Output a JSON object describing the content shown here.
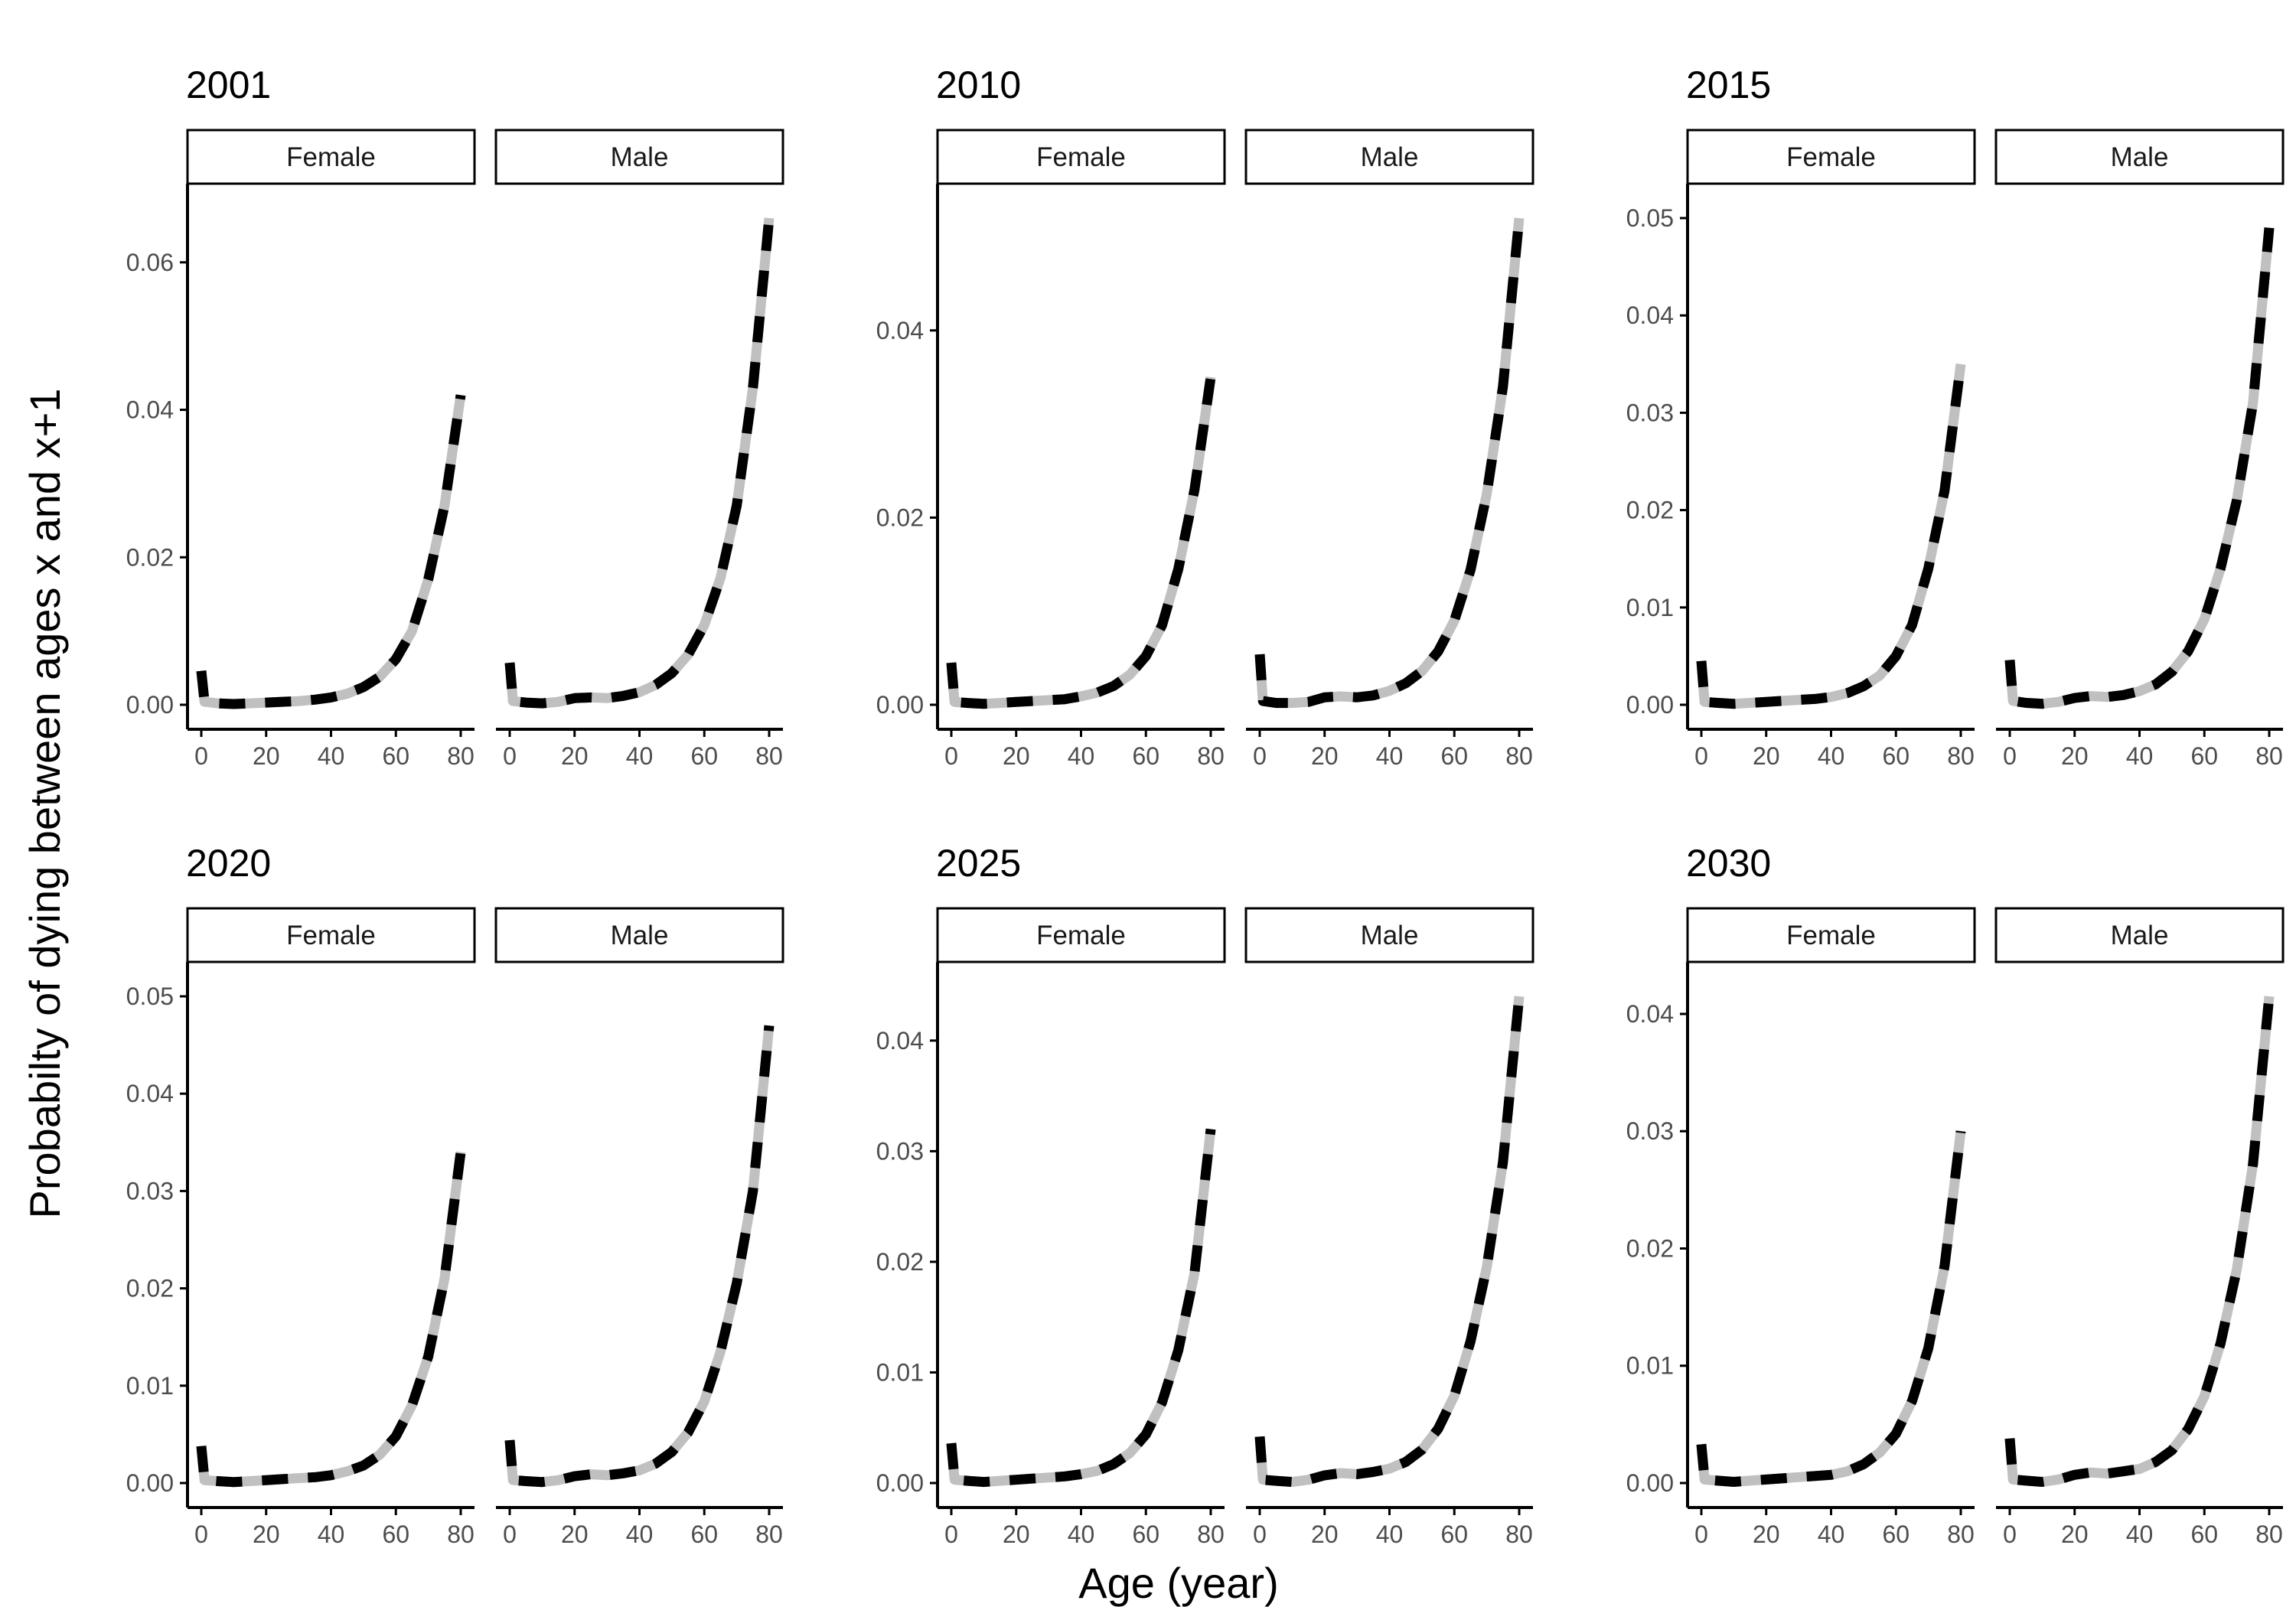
{
  "figure": {
    "ylabel": "Probabilty of dying between ages x and x+1",
    "xlabel": "Age (year)"
  },
  "colors": {
    "fitted_line": "#c0c0c0",
    "observed_line": "#000000",
    "axis": "#000000",
    "tick_text": "#4d4d4d",
    "strip_border": "#000000"
  },
  "chart_data": [
    {
      "type": "line",
      "title": "2001",
      "facets": [
        "Female",
        "Male"
      ],
      "x": [
        0,
        1,
        5,
        10,
        15,
        20,
        25,
        30,
        35,
        40,
        45,
        50,
        55,
        60,
        65,
        70,
        75,
        80
      ],
      "series": [
        {
          "facet": "Female",
          "values": [
            0.0046,
            0.0004,
            0.0002,
            0.0001,
            0.0002,
            0.0003,
            0.0004,
            0.0005,
            0.0007,
            0.001,
            0.0015,
            0.0024,
            0.0038,
            0.0062,
            0.01,
            0.017,
            0.027,
            0.042
          ]
        },
        {
          "facet": "Male",
          "values": [
            0.0057,
            0.0005,
            0.0003,
            0.0002,
            0.0004,
            0.0009,
            0.001,
            0.0009,
            0.0012,
            0.0017,
            0.0027,
            0.0043,
            0.0068,
            0.0108,
            0.0172,
            0.027,
            0.043,
            0.066
          ]
        }
      ],
      "xlim": [
        0,
        80
      ],
      "ylim": [
        0,
        0.066
      ],
      "xticks": [
        "0",
        "20",
        "40",
        "60",
        "80"
      ],
      "yticks": [
        0,
        0.02,
        0.04,
        0.06
      ],
      "ytick_labels": [
        "0.00",
        "0.02",
        "0.04",
        "0.06"
      ]
    },
    {
      "type": "line",
      "title": "2010",
      "facets": [
        "Female",
        "Male"
      ],
      "x": [
        0,
        1,
        5,
        10,
        15,
        20,
        25,
        30,
        35,
        40,
        45,
        50,
        55,
        60,
        65,
        70,
        75,
        80
      ],
      "series": [
        {
          "facet": "Female",
          "values": [
            0.0045,
            0.0003,
            0.0002,
            0.0001,
            0.0002,
            0.0003,
            0.0004,
            0.0005,
            0.0006,
            0.0009,
            0.0013,
            0.002,
            0.0032,
            0.0052,
            0.0085,
            0.0145,
            0.023,
            0.035
          ]
        },
        {
          "facet": "Male",
          "values": [
            0.0054,
            0.0004,
            0.0002,
            0.0002,
            0.0003,
            0.0008,
            0.0009,
            0.0008,
            0.001,
            0.0015,
            0.0023,
            0.0036,
            0.0057,
            0.009,
            0.0144,
            0.0225,
            0.034,
            0.052
          ]
        }
      ],
      "xlim": [
        0,
        80
      ],
      "ylim": [
        0,
        0.052
      ],
      "xticks": [
        "0",
        "20",
        "40",
        "60",
        "80"
      ],
      "yticks": [
        0,
        0.02,
        0.04
      ],
      "ytick_labels": [
        "0.00",
        "0.02",
        "0.04"
      ]
    },
    {
      "type": "line",
      "title": "2015",
      "facets": [
        "Female",
        "Male"
      ],
      "x": [
        0,
        1,
        5,
        10,
        15,
        20,
        25,
        30,
        35,
        40,
        45,
        50,
        55,
        60,
        65,
        70,
        75,
        80
      ],
      "series": [
        {
          "facet": "Female",
          "values": [
            0.0045,
            0.0003,
            0.0002,
            0.0001,
            0.0002,
            0.0003,
            0.0004,
            0.0005,
            0.0006,
            0.0008,
            0.0012,
            0.0019,
            0.003,
            0.005,
            0.0082,
            0.014,
            0.022,
            0.035
          ]
        },
        {
          "facet": "Male",
          "values": [
            0.0046,
            0.0004,
            0.0002,
            0.0001,
            0.0003,
            0.0007,
            0.0009,
            0.0008,
            0.001,
            0.0014,
            0.0021,
            0.0034,
            0.0055,
            0.0088,
            0.014,
            0.021,
            0.031,
            0.049
          ]
        }
      ],
      "xlim": [
        0,
        80
      ],
      "ylim": [
        0,
        0.05
      ],
      "xticks": [
        "0",
        "20",
        "40",
        "60",
        "80"
      ],
      "yticks": [
        0,
        0.01,
        0.02,
        0.03,
        0.04,
        0.05
      ],
      "ytick_labels": [
        "0.00",
        "0.01",
        "0.02",
        "0.03",
        "0.04",
        "0.05"
      ]
    },
    {
      "type": "line",
      "title": "2020",
      "facets": [
        "Female",
        "Male"
      ],
      "x": [
        0,
        1,
        5,
        10,
        15,
        20,
        25,
        30,
        35,
        40,
        45,
        50,
        55,
        60,
        65,
        70,
        75,
        80
      ],
      "series": [
        {
          "facet": "Female",
          "values": [
            0.0038,
            0.0003,
            0.0002,
            0.0001,
            0.0002,
            0.0003,
            0.0004,
            0.0005,
            0.0006,
            0.0008,
            0.0012,
            0.0018,
            0.0029,
            0.0048,
            0.008,
            0.013,
            0.021,
            0.034
          ]
        },
        {
          "facet": "Male",
          "values": [
            0.0044,
            0.0003,
            0.0002,
            0.0001,
            0.0003,
            0.0007,
            0.0009,
            0.0008,
            0.001,
            0.0013,
            0.002,
            0.0032,
            0.0052,
            0.0084,
            0.0135,
            0.0205,
            0.03,
            0.047
          ]
        }
      ],
      "xlim": [
        0,
        80
      ],
      "ylim": [
        0,
        0.05
      ],
      "xticks": [
        "0",
        "20",
        "40",
        "60",
        "80"
      ],
      "yticks": [
        0,
        0.01,
        0.02,
        0.03,
        0.04,
        0.05
      ],
      "ytick_labels": [
        "0.00",
        "0.01",
        "0.02",
        "0.03",
        "0.04",
        "0.05"
      ]
    },
    {
      "type": "line",
      "title": "2025",
      "facets": [
        "Female",
        "Male"
      ],
      "x": [
        0,
        1,
        5,
        10,
        15,
        20,
        25,
        30,
        35,
        40,
        45,
        50,
        55,
        60,
        65,
        70,
        75,
        80
      ],
      "series": [
        {
          "facet": "Female",
          "values": [
            0.0036,
            0.0003,
            0.0002,
            0.0001,
            0.0002,
            0.0003,
            0.0004,
            0.0005,
            0.0006,
            0.0008,
            0.0011,
            0.0017,
            0.0027,
            0.0044,
            0.0073,
            0.012,
            0.019,
            0.032
          ]
        },
        {
          "facet": "Male",
          "values": [
            0.0042,
            0.0003,
            0.0002,
            0.0001,
            0.0003,
            0.0007,
            0.0009,
            0.0008,
            0.001,
            0.0013,
            0.0019,
            0.003,
            0.0049,
            0.0079,
            0.0128,
            0.0195,
            0.029,
            0.044
          ]
        }
      ],
      "xlim": [
        0,
        80
      ],
      "ylim": [
        0,
        0.044
      ],
      "xticks": [
        "0",
        "20",
        "40",
        "60",
        "80"
      ],
      "yticks": [
        0,
        0.01,
        0.02,
        0.03,
        0.04
      ],
      "ytick_labels": [
        "0.00",
        "0.01",
        "0.02",
        "0.03",
        "0.04"
      ]
    },
    {
      "type": "line",
      "title": "2030",
      "facets": [
        "Female",
        "Male"
      ],
      "x": [
        0,
        1,
        5,
        10,
        15,
        20,
        25,
        30,
        35,
        40,
        45,
        50,
        55,
        60,
        65,
        70,
        75,
        80
      ],
      "series": [
        {
          "facet": "Female",
          "values": [
            0.0033,
            0.0003,
            0.0002,
            0.0001,
            0.0002,
            0.0003,
            0.0004,
            0.0005,
            0.0006,
            0.0007,
            0.001,
            0.0016,
            0.0026,
            0.0042,
            0.007,
            0.0115,
            0.0185,
            0.03
          ]
        },
        {
          "facet": "Male",
          "values": [
            0.0038,
            0.0003,
            0.0002,
            0.0001,
            0.0003,
            0.0007,
            0.0009,
            0.0008,
            0.001,
            0.0012,
            0.0018,
            0.0028,
            0.0046,
            0.0074,
            0.0119,
            0.0182,
            0.0272,
            0.0415
          ]
        }
      ],
      "xlim": [
        0,
        80
      ],
      "ylim": [
        0,
        0.0415
      ],
      "xticks": [
        "0",
        "20",
        "40",
        "60",
        "80"
      ],
      "yticks": [
        0,
        0.01,
        0.02,
        0.03,
        0.04
      ],
      "ytick_labels": [
        "0.00",
        "0.01",
        "0.02",
        "0.03",
        "0.04"
      ]
    }
  ]
}
